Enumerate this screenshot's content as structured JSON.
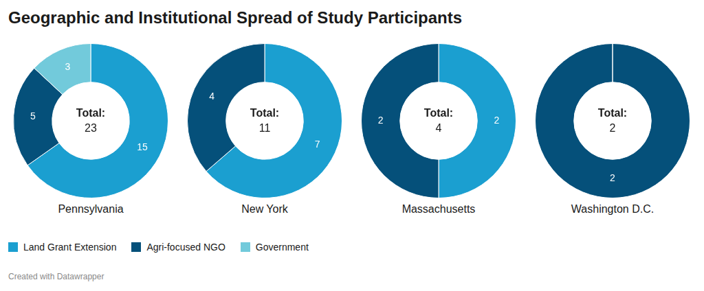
{
  "title": "Geographic and Institutional Spread of Study Participants",
  "legend_entries": [
    {
      "name": "Land Grant Extension",
      "color": "#1b9fd0"
    },
    {
      "name": "Agri-focused NGO",
      "color": "#05507a"
    },
    {
      "name": "Government",
      "color": "#72cadb"
    }
  ],
  "footer": "Created with Datawrapper",
  "chart_data": [
    {
      "type": "doughnut",
      "title": "Pennsylvania",
      "categories": [
        "Land Grant Extension",
        "Agri-focused NGO",
        "Government"
      ],
      "values": [
        15,
        5,
        3
      ],
      "colors": [
        "#1b9fd0",
        "#05507a",
        "#72cadb"
      ],
      "data_labels": true,
      "center_label": "Total:",
      "total": 23
    },
    {
      "type": "doughnut",
      "title": "New York",
      "categories": [
        "Land Grant Extension",
        "Agri-focused NGO"
      ],
      "values": [
        7,
        4
      ],
      "colors": [
        "#1b9fd0",
        "#05507a"
      ],
      "data_labels": true,
      "center_label": "Total:",
      "total": 11
    },
    {
      "type": "doughnut",
      "title": "Massachusetts",
      "categories": [
        "Land Grant Extension",
        "Agri-focused NGO"
      ],
      "values": [
        2,
        2
      ],
      "colors": [
        "#1b9fd0",
        "#05507a"
      ],
      "data_labels": true,
      "center_label": "Total:",
      "total": 4
    },
    {
      "type": "doughnut",
      "title": "Washington D.C.",
      "categories": [
        "Agri-focused NGO"
      ],
      "values": [
        2
      ],
      "colors": [
        "#05507a"
      ],
      "data_labels": true,
      "center_label": "Total:",
      "total": 2
    }
  ]
}
